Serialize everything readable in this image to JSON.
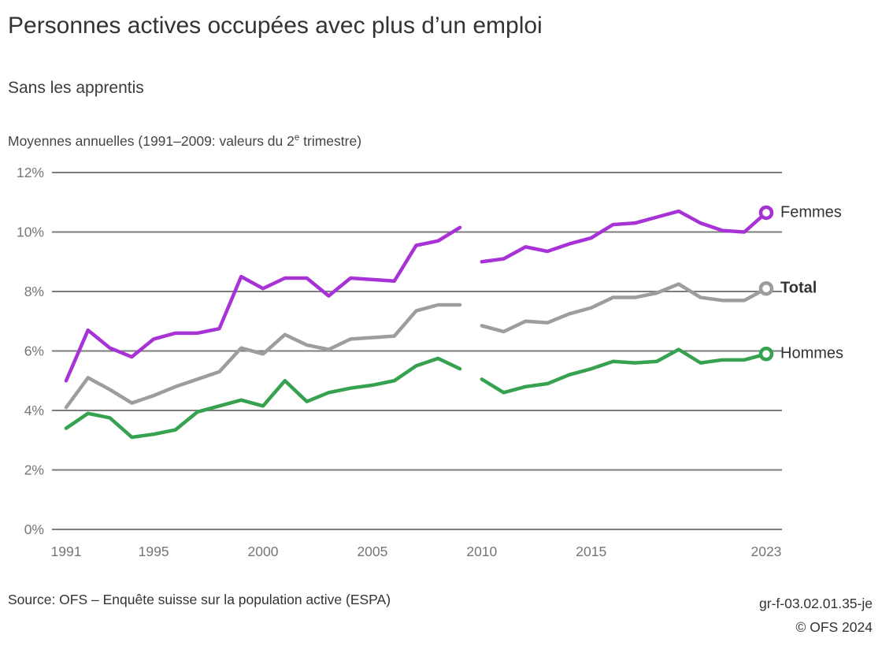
{
  "header": {
    "title": "Personnes actives occupées avec plus d’un emploi",
    "subtitle": "Sans les apprentis",
    "note": {
      "prefix": "Moyennes annuelles (1991–2009: valeurs du 2",
      "sup": "e",
      "suffix": " trimestre)"
    }
  },
  "chart_data": {
    "type": "line",
    "unit": "%",
    "ylim": [
      0,
      12
    ],
    "yticks": [
      0,
      2,
      4,
      6,
      8,
      10,
      12
    ],
    "ytick_labels": [
      "0%",
      "2%",
      "4%",
      "6%",
      "8%",
      "10%",
      "12%"
    ],
    "xticks": [
      1991,
      1995,
      2000,
      2005,
      2010,
      2015,
      2023
    ],
    "xrange": [
      1991,
      2023
    ],
    "grid": true,
    "legend_position": "right-end-labels",
    "series_break": "lines are interrupted between 2009 and 2010 (survey method change)",
    "series": [
      {
        "name": "Femmes",
        "color": "#a733d6",
        "label_bold": false,
        "segments": [
          {
            "start_year": 1991,
            "values": [
              5.0,
              6.7,
              6.1,
              5.8,
              6.4,
              6.6,
              6.6,
              6.75,
              8.5,
              8.1,
              8.45,
              8.45,
              7.85,
              8.45,
              8.4,
              8.35,
              9.55,
              9.7,
              10.15
            ]
          },
          {
            "start_year": 2010,
            "values": [
              9.0,
              9.1,
              9.5,
              9.35,
              9.6,
              9.8,
              10.25,
              10.3,
              10.5,
              10.7,
              10.3,
              10.05,
              10.0,
              10.65
            ]
          }
        ]
      },
      {
        "name": "Total",
        "color": "#9d9d9d",
        "label_bold": true,
        "segments": [
          {
            "start_year": 1991,
            "values": [
              4.1,
              5.1,
              4.7,
              4.25,
              4.5,
              4.8,
              5.05,
              5.3,
              6.1,
              5.9,
              6.55,
              6.2,
              6.05,
              6.4,
              6.45,
              6.5,
              7.35,
              7.55,
              7.55
            ]
          },
          {
            "start_year": 2010,
            "values": [
              6.85,
              6.65,
              7.0,
              6.95,
              7.25,
              7.45,
              7.8,
              7.8,
              7.95,
              8.25,
              7.8,
              7.7,
              7.7,
              8.1
            ]
          }
        ]
      },
      {
        "name": "Hommes",
        "color": "#36a14f",
        "label_bold": false,
        "segments": [
          {
            "start_year": 1991,
            "values": [
              3.4,
              3.9,
              3.75,
              3.1,
              3.2,
              3.35,
              3.95,
              4.15,
              4.35,
              4.15,
              5.0,
              4.3,
              4.6,
              4.75,
              4.85,
              5.0,
              5.5,
              5.75,
              5.4
            ]
          },
          {
            "start_year": 2010,
            "values": [
              5.05,
              4.6,
              4.8,
              4.9,
              5.2,
              5.4,
              5.65,
              5.6,
              5.65,
              6.05,
              5.6,
              5.7,
              5.7,
              5.9
            ]
          }
        ]
      }
    ]
  },
  "footer": {
    "source": "Source: OFS – Enquête suisse sur la population active (ESPA)",
    "reference": "gr-f-03.02.01.35-je",
    "copyright": "© OFS 2024"
  }
}
